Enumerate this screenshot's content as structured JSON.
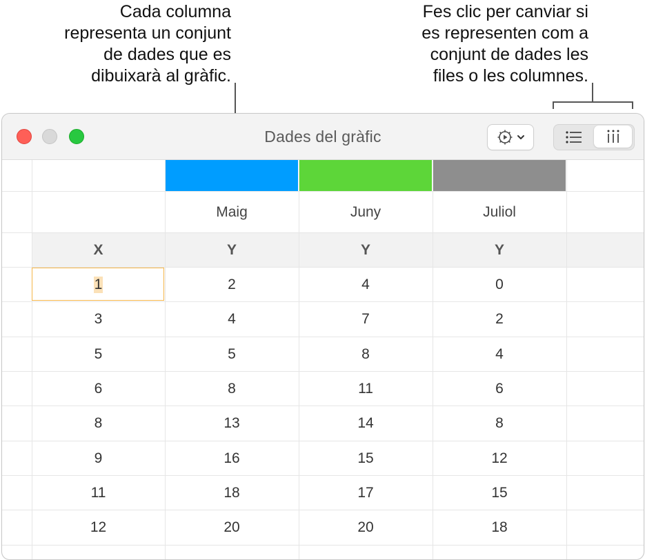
{
  "callouts": {
    "left": [
      "Cada columna",
      "representa un conjunt",
      "de dades que es",
      "dibuixarà al gràfic."
    ],
    "right": [
      "Fes clic per canviar si",
      "es representen com a",
      "conjunt de dades les",
      "files o les columnes."
    ]
  },
  "window": {
    "title": "Dades del gràfic",
    "gear_icon": "gear-with-play-icon",
    "chevron_icon": "chevron-down-icon",
    "segmented": {
      "rows_icon": "list-rows-icon",
      "columns_icon": "columns-icon",
      "selected": "columns"
    }
  },
  "series_colors": [
    "#009dff",
    "#5dd639",
    "#8e8e8e"
  ],
  "table": {
    "series_names": [
      "Maig",
      "Juny",
      "Juliol"
    ],
    "axis_labels": [
      "X",
      "Y",
      "Y",
      "Y"
    ],
    "rows": [
      [
        "1",
        "2",
        "4",
        "0"
      ],
      [
        "3",
        "4",
        "7",
        "2"
      ],
      [
        "5",
        "5",
        "8",
        "4"
      ],
      [
        "6",
        "8",
        "11",
        "6"
      ],
      [
        "8",
        "13",
        "14",
        "8"
      ],
      [
        "9",
        "16",
        "15",
        "12"
      ],
      [
        "11",
        "18",
        "17",
        "15"
      ],
      [
        "12",
        "20",
        "20",
        "18"
      ]
    ]
  }
}
